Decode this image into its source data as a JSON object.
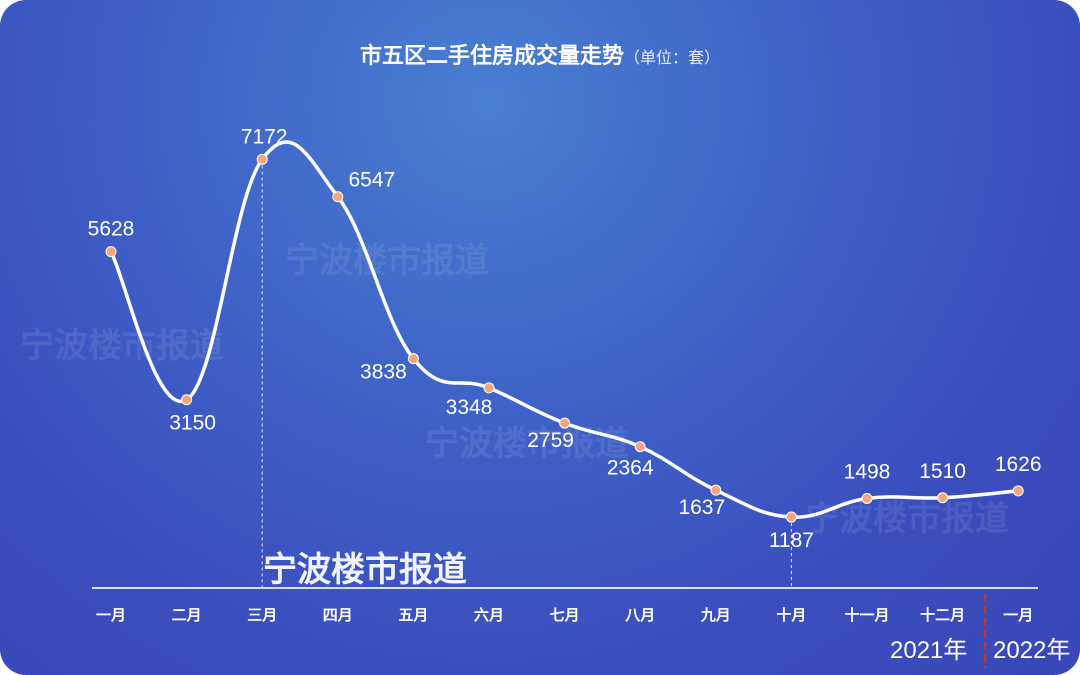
{
  "title": "市五区二手住房成交量走势",
  "unit": "（单位：套）",
  "watermark": "宁波楼市报道",
  "colors": {
    "line": "#ffffff",
    "point": "#f4a582",
    "divider": "#c0392b",
    "axis": "#d8ddf0"
  },
  "chart_data": {
    "type": "line",
    "title": "市五区二手住房成交量走势",
    "unit": "（单位：套）",
    "categories": [
      "一月",
      "二月",
      "三月",
      "四月",
      "五月",
      "六月",
      "七月",
      "八月",
      "九月",
      "十月",
      "十一月",
      "十二月",
      "一月"
    ],
    "values": [
      5628,
      3150,
      7172,
      6547,
      3838,
      3348,
      2759,
      2364,
      1637,
      1187,
      1498,
      1510,
      1626
    ],
    "year_labels": [
      "2021年",
      "2022年"
    ],
    "ylim": [
      0,
      8500
    ],
    "grid": false,
    "legend": "none"
  }
}
